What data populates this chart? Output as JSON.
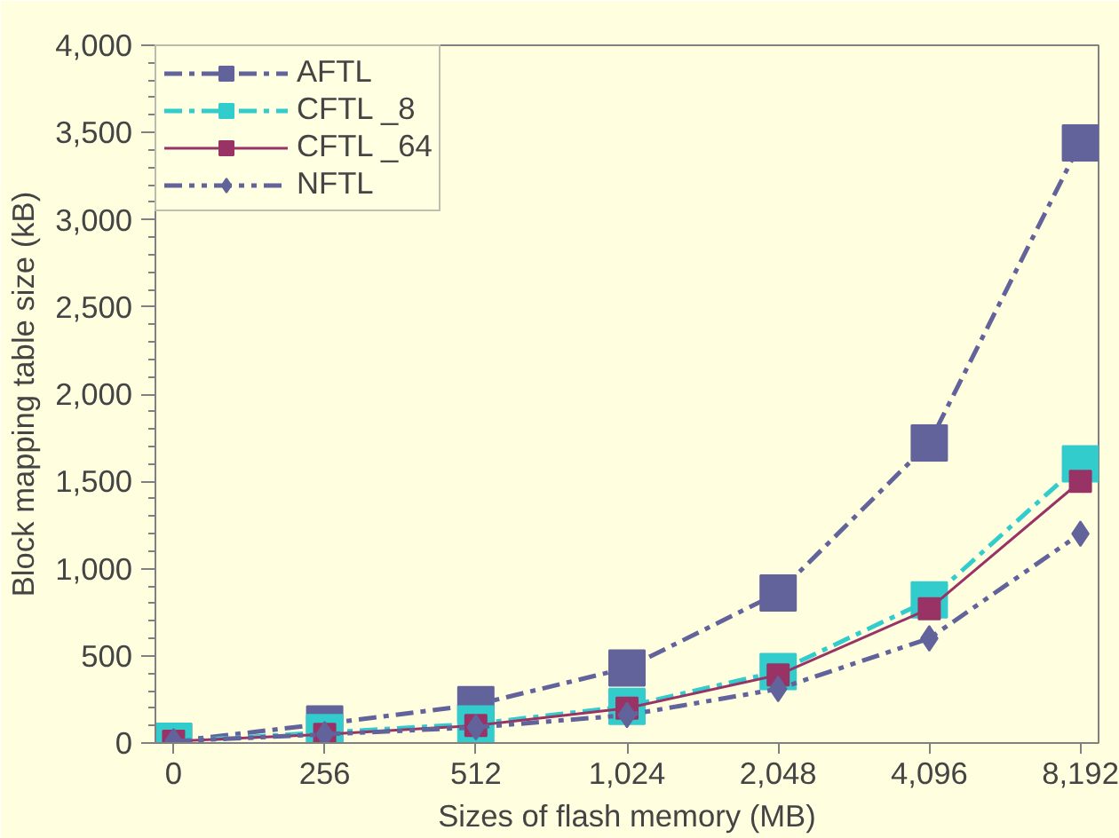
{
  "chart_data": {
    "type": "line",
    "xlabel": "Sizes of flash memory (MB)",
    "ylabel": "Block mapping table size (kB)",
    "categories": [
      "0",
      "256",
      "512",
      "1,024",
      "2,048",
      "4,096",
      "8,192"
    ],
    "series": [
      {
        "name": "AFTL",
        "color": "#63639c",
        "marker": "square",
        "line_style": "dashed",
        "values": [
          10,
          110,
          220,
          430,
          860,
          1720,
          3440
        ]
      },
      {
        "name": "CFTL _8",
        "color": "#33cccc",
        "marker": "square",
        "line_style": "dashed",
        "values": [
          10,
          60,
          110,
          210,
          410,
          820,
          1600
        ]
      },
      {
        "name": "CFTL _64",
        "color": "#993366",
        "marker": "square",
        "line_style": "solid",
        "values": [
          10,
          50,
          100,
          200,
          390,
          770,
          1500
        ]
      },
      {
        "name": "NFTL",
        "color": "#63639c",
        "marker": "diamond",
        "line_style": "dotted",
        "values": [
          10,
          50,
          90,
          160,
          310,
          600,
          1200
        ]
      }
    ],
    "ylim": [
      0,
      4000
    ],
    "yticks": [
      {
        "value": 0,
        "label": "0"
      },
      {
        "value": 500,
        "label": "500"
      },
      {
        "value": 1000,
        "label": "1,000"
      },
      {
        "value": 1500,
        "label": "1,500"
      },
      {
        "value": 2000,
        "label": "2,000"
      },
      {
        "value": 2500,
        "label": "2,500"
      },
      {
        "value": 3000,
        "label": "3,000"
      },
      {
        "value": 3500,
        "label": "3,500"
      },
      {
        "value": 4000,
        "label": "4,000"
      }
    ],
    "grid": false,
    "legend": "top left"
  }
}
